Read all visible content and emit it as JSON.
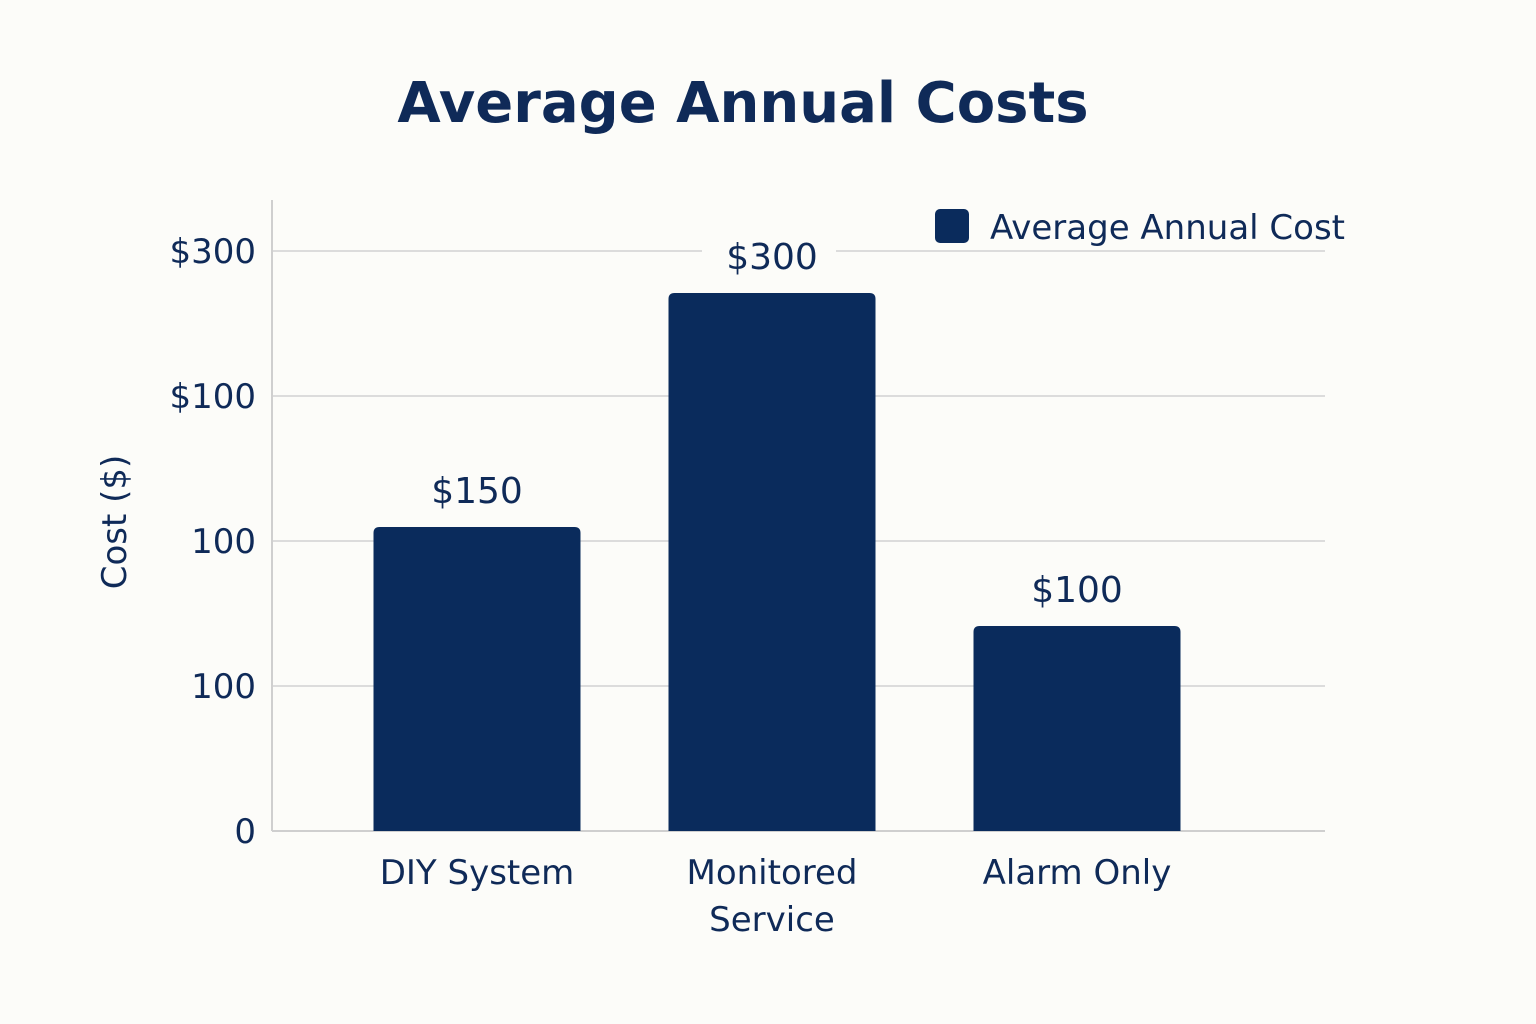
{
  "chart_data": {
    "type": "bar",
    "title": "Average Annual Costs",
    "xlabel": "",
    "ylabel": "Cost ($)",
    "categories": [
      "DIY System",
      "Monitored Service",
      "Alarm Only"
    ],
    "series": [
      {
        "name": "Average Annual Cost",
        "values": [
          150,
          300,
          100
        ]
      }
    ],
    "data_labels": [
      "$150",
      "$300",
      "$100"
    ],
    "y_tick_labels": [
      "0",
      "100",
      "100",
      "$100",
      "$300"
    ],
    "legend_position": "top-right",
    "grid": true
  },
  "colors": {
    "bar": "#0a2b5c",
    "text": "#0f2a58",
    "grid": "#dcdcdc",
    "axis": "#cfcfcf",
    "background": "#fcfcf9"
  }
}
